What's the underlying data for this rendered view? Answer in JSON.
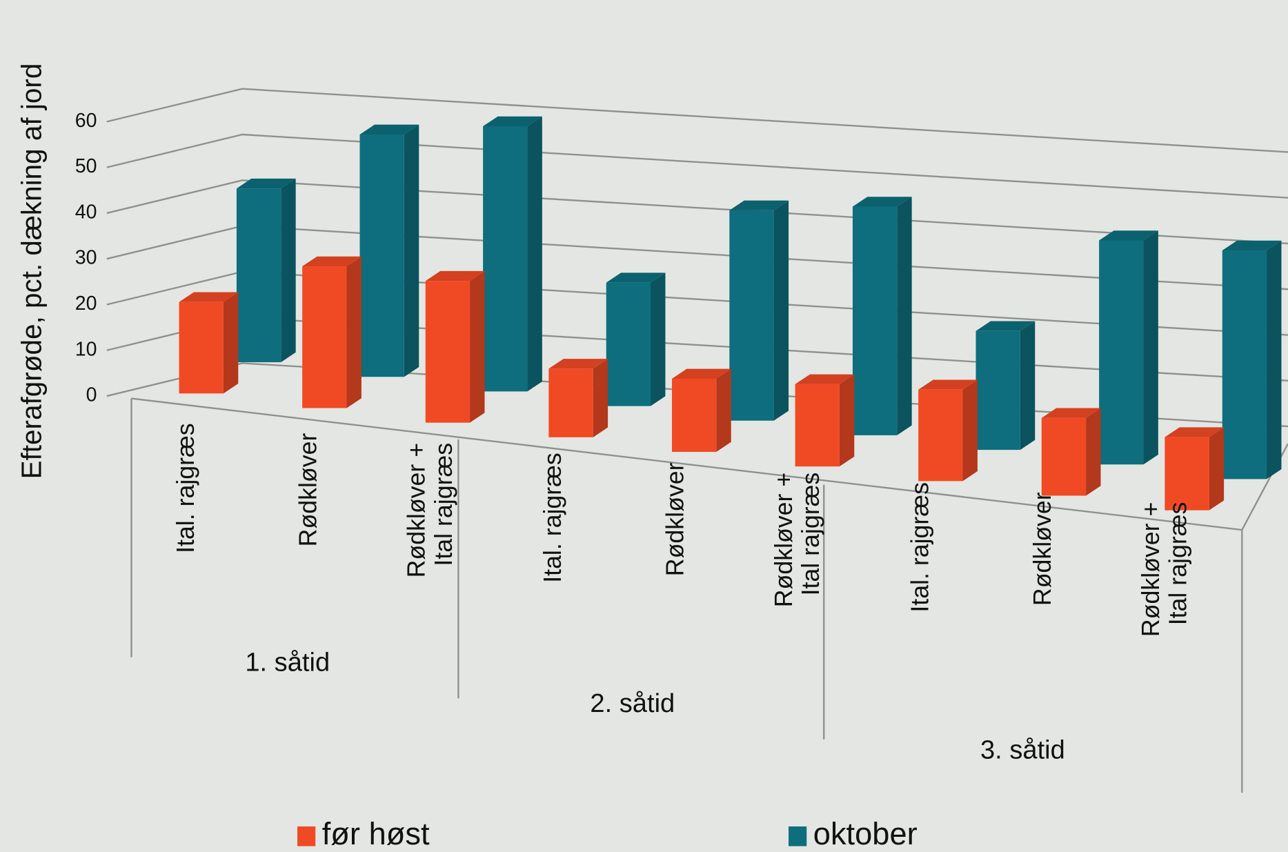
{
  "chart_data": {
    "type": "bar3d",
    "y_label": "Efterafgrøde,  pct. dækning af jord",
    "categories": [
      "Ital. rajgræs",
      "Rødkløver",
      "Rødkløver +\nItal rajgræs",
      "Ital. rajgræs",
      "Rødkløver",
      "Rødkløver +\nItal rajgræs",
      "Ital.  rajgræs",
      "Rødkløver",
      "Rødkløver +\nItal rajgræs"
    ],
    "groups": [
      "1. såtid",
      "2. såtid",
      "3. såtid"
    ],
    "series": [
      {
        "name": "før høst",
        "color": "#f04a24",
        "values": [
          20,
          31,
          31,
          15,
          16,
          18,
          20,
          17,
          16
        ]
      },
      {
        "name": "oktober",
        "color": "#0e6e7d",
        "values": [
          38,
          53,
          58,
          27,
          46,
          50,
          26,
          49,
          50
        ]
      }
    ],
    "ylim": [
      0,
      60
    ],
    "yticks": [
      0,
      10,
      20,
      30,
      40,
      50,
      60
    ],
    "grid": true
  }
}
